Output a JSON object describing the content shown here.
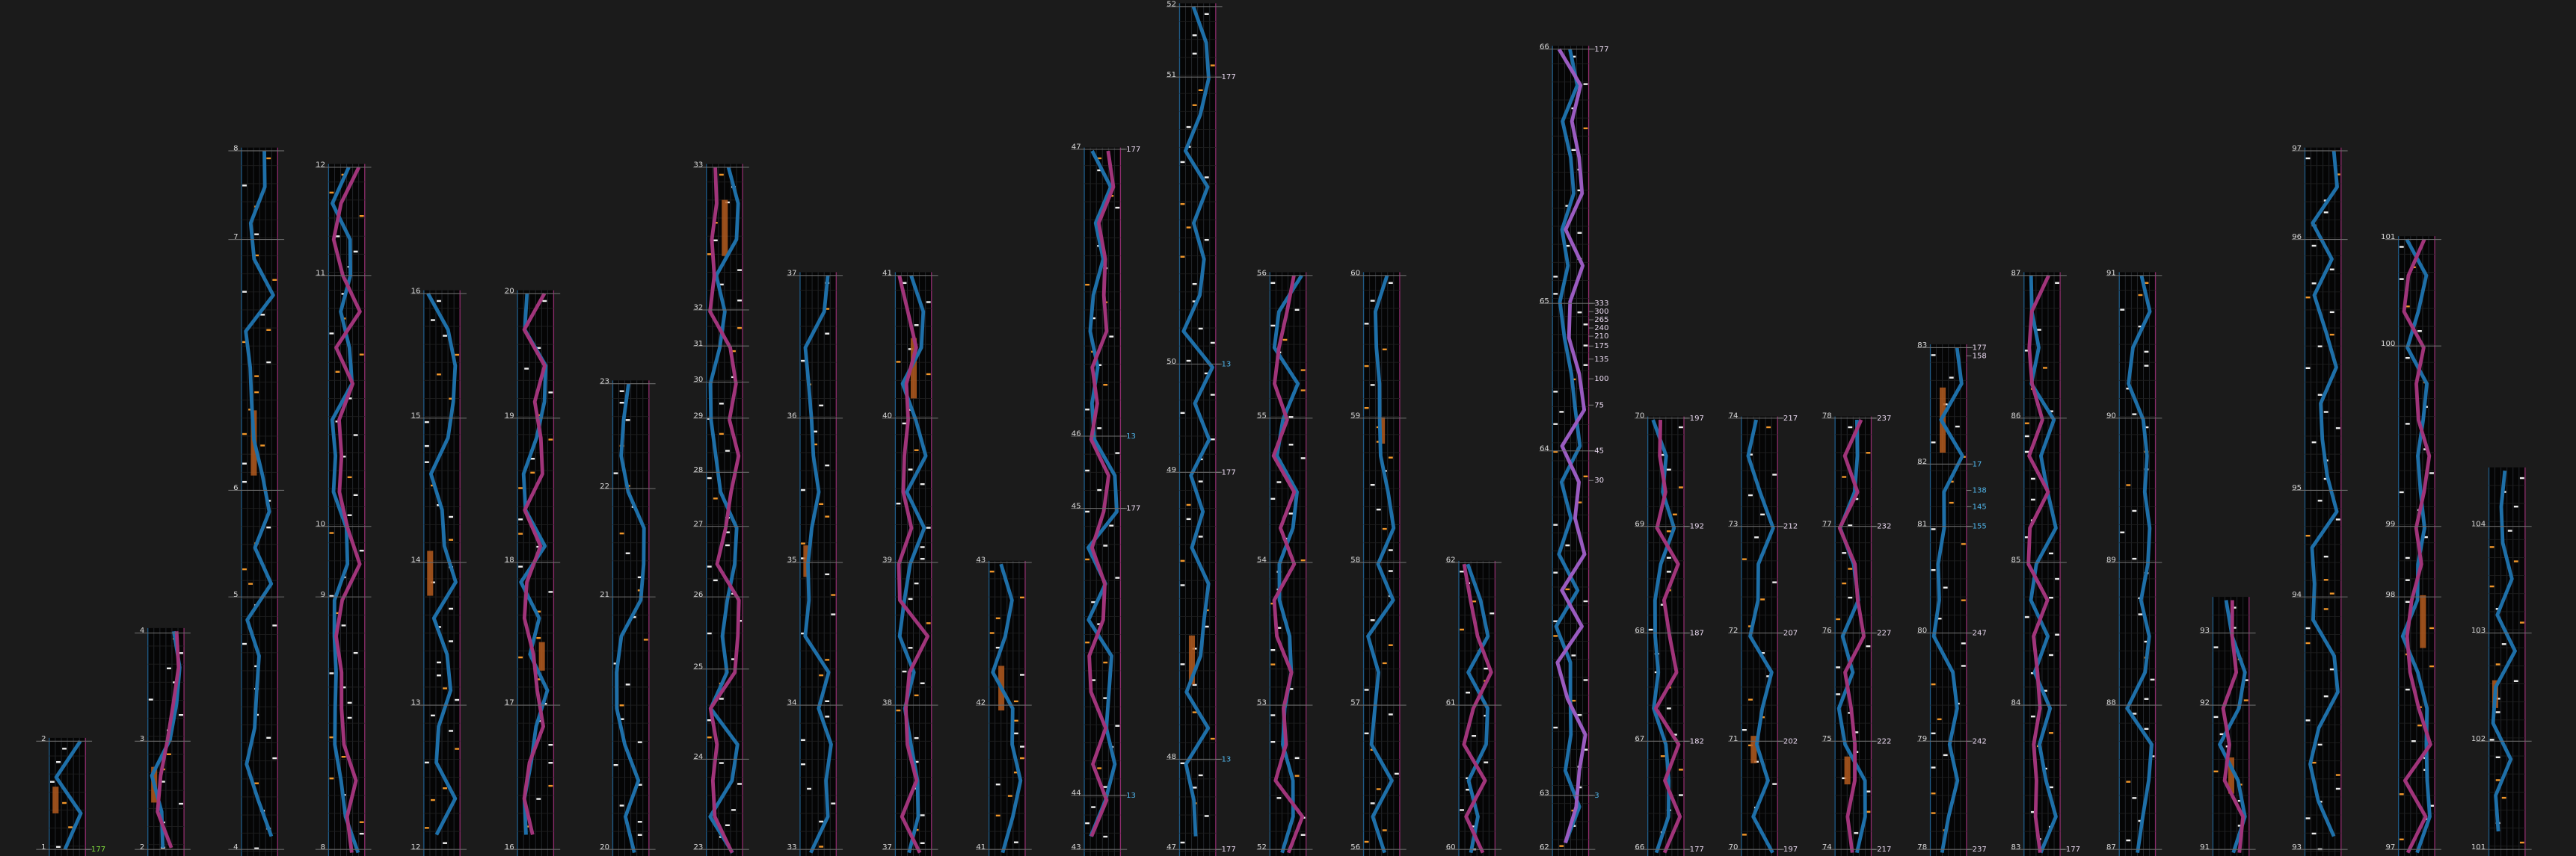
{
  "columns": [
    {
      "measures": [
        2,
        1
      ],
      "tempos": [
        177
      ]
    },
    {
      "measures": [
        4,
        3,
        2
      ],
      "tempos": []
    },
    {
      "measures": [
        8,
        7,
        6,
        5,
        4
      ],
      "tempos": []
    },
    {
      "measures": [
        12,
        11,
        10,
        9,
        8
      ],
      "tempos": []
    },
    {
      "measures": [
        16,
        15,
        14,
        13,
        12
      ],
      "tempos": []
    },
    {
      "measures": [
        20,
        19,
        18,
        17,
        16
      ],
      "tempos": []
    },
    {
      "measures": [
        23,
        22,
        21,
        20
      ],
      "tempos": []
    },
    {
      "measures": [
        33,
        32,
        31,
        30,
        29,
        28,
        27,
        26,
        25,
        24,
        23
      ],
      "tempos": []
    },
    {
      "measures": [
        37,
        36,
        35,
        34,
        33
      ],
      "tempos": []
    },
    {
      "measures": [
        41,
        40,
        39,
        38,
        37
      ],
      "tempos": []
    },
    {
      "measures": [
        43,
        42,
        41
      ],
      "tempos": []
    },
    {
      "measures": [
        47,
        46,
        45,
        44,
        43
      ],
      "tempos": [
        177,
        13,
        177,
        13
      ]
    },
    {
      "measures": [
        52,
        51,
        50,
        49,
        48,
        47
      ],
      "tempos": [
        177,
        13,
        177,
        13,
        177
      ]
    },
    {
      "measures": [
        56,
        55,
        54,
        53,
        52
      ],
      "tempos": []
    },
    {
      "measures": [
        60,
        59,
        58,
        57,
        56
      ],
      "tempos": []
    },
    {
      "measures": [
        62,
        61,
        60
      ],
      "tempos": []
    },
    {
      "measures": [
        66,
        65,
        64,
        63,
        62
      ],
      "tempos": [
        177,
        333,
        300,
        265,
        240,
        210,
        175,
        135,
        100,
        75,
        45,
        30,
        3
      ]
    },
    {
      "measures": [
        70,
        69,
        68,
        67,
        66
      ],
      "tempos": [
        197,
        192,
        187,
        182,
        177
      ]
    },
    {
      "measures": [
        74,
        73,
        72,
        71,
        70
      ],
      "tempos": [
        217,
        212,
        207,
        202,
        197
      ]
    },
    {
      "measures": [
        78,
        77,
        76,
        75,
        74
      ],
      "tempos": [
        237,
        232,
        227,
        222,
        217
      ]
    },
    {
      "measures": [
        83,
        82,
        81,
        80,
        79,
        78
      ],
      "tempos": [
        177,
        158,
        17,
        138,
        145,
        155,
        247,
        242,
        237
      ]
    },
    {
      "measures": [
        87,
        86,
        85,
        84,
        83
      ],
      "tempos": [
        177
      ]
    },
    {
      "measures": [
        91,
        90,
        89,
        88,
        87
      ],
      "tempos": []
    },
    {
      "measures": [
        93,
        92,
        91
      ],
      "tempos": []
    },
    {
      "measures": [
        97,
        96,
        95,
        94,
        93
      ],
      "tempos": []
    },
    {
      "measures": [
        101,
        100,
        99,
        98,
        97
      ],
      "tempos": []
    },
    {
      "measures": [
        104,
        103,
        102,
        101
      ],
      "tempos": []
    }
  ]
}
